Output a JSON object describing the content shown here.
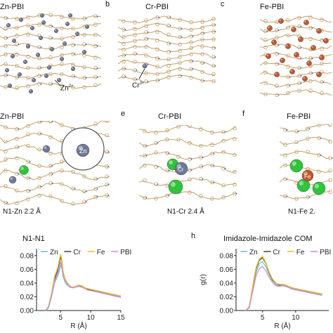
{
  "panels": {
    "a": {
      "title": "Zn-PBI",
      "annotation": "Zn",
      "annotation_sup": "2+"
    },
    "b": {
      "letter": "b",
      "title": "Cr-PBI",
      "annotation": "Cr",
      "annotation_sup": "3+"
    },
    "c": {
      "letter": "c",
      "title": "Fe-PBI"
    },
    "d": {
      "title": "Zn-PBI",
      "atom_label": "Zn",
      "distance": "N1-Zn  2.2 Å"
    },
    "e": {
      "letter": "e",
      "title": "Cr-PBI",
      "atom_label": "Cr",
      "distance": "N1-Cr  2.4 Å"
    },
    "f": {
      "letter": "f",
      "title": "Fe-PBI",
      "atom_label": "Fe",
      "distance": "N1-Fe  2."
    },
    "g": {
      "title": "N1-N1"
    },
    "h": {
      "letter": "h",
      "title": "Imidazole-Imidazole COM"
    }
  },
  "colors": {
    "Zn": "#6fc2d0",
    "Cr": "#3b5a3e",
    "Fe": "#f0c02a",
    "PBI": "#d98ad6",
    "zn_atom": "#6e7898",
    "fe_atom": "#c2552a",
    "cl_atom": "#2fc43a",
    "polymer": "#c9a877",
    "nitrogen": "#3a56c8"
  },
  "chart_data": [
    {
      "type": "line",
      "title": "N1-N1",
      "xlabel": "R (Å)",
      "ylabel": "",
      "xlim": [
        1,
        15
      ],
      "ylim": [
        0,
        0.09
      ],
      "xticks": [
        "5",
        "10",
        "15"
      ],
      "yticks": [
        "0.00",
        "0.02",
        "0.04",
        "0.06",
        "0.08"
      ],
      "legend": "top-center",
      "x": [
        2.5,
        3.0,
        3.5,
        4.0,
        4.5,
        4.8,
        5.0,
        5.2,
        5.4,
        5.7,
        6.0,
        6.5,
        7.0,
        7.5,
        8.0,
        8.5,
        9.0,
        9.5,
        10.0,
        11.0,
        12.0,
        13.0,
        14.0,
        15.0
      ],
      "series": [
        {
          "name": "Zn",
          "values": [
            0.0,
            0.004,
            0.02,
            0.04,
            0.05,
            0.058,
            0.066,
            0.062,
            0.05,
            0.042,
            0.038,
            0.034,
            0.033,
            0.034,
            0.036,
            0.035,
            0.032,
            0.031,
            0.03,
            0.028,
            0.026,
            0.024,
            0.022,
            0.02
          ]
        },
        {
          "name": "Cr",
          "values": [
            0.0,
            0.006,
            0.024,
            0.046,
            0.058,
            0.07,
            0.079,
            0.072,
            0.056,
            0.046,
            0.041,
            0.035,
            0.034,
            0.035,
            0.037,
            0.036,
            0.033,
            0.031,
            0.03,
            0.029,
            0.027,
            0.025,
            0.023,
            0.021
          ]
        },
        {
          "name": "Fe",
          "values": [
            0.0,
            0.006,
            0.026,
            0.05,
            0.062,
            0.074,
            0.082,
            0.075,
            0.058,
            0.047,
            0.042,
            0.036,
            0.034,
            0.035,
            0.037,
            0.036,
            0.033,
            0.032,
            0.031,
            0.029,
            0.027,
            0.025,
            0.023,
            0.021
          ]
        },
        {
          "name": "PBI",
          "values": [
            0.0,
            0.005,
            0.022,
            0.043,
            0.053,
            0.062,
            0.07,
            0.065,
            0.053,
            0.044,
            0.04,
            0.035,
            0.033,
            0.034,
            0.035,
            0.034,
            0.032,
            0.03,
            0.029,
            0.027,
            0.025,
            0.023,
            0.021,
            0.019
          ]
        }
      ]
    },
    {
      "type": "line",
      "title": "Imidazole-Imidazole COM",
      "xlabel": "R (Å)",
      "ylabel": "g(r)",
      "xlim": [
        1,
        15
      ],
      "ylim": [
        0,
        0.09
      ],
      "xticks": [
        "5",
        "10"
      ],
      "yticks": [
        "0.00",
        "0.02",
        "0.04",
        "0.06",
        "0.08"
      ],
      "legend": "top-center",
      "x": [
        2.5,
        3.0,
        3.5,
        4.0,
        4.5,
        5.0,
        5.5,
        6.0,
        6.5,
        7.0,
        7.5,
        8.0,
        8.5,
        9.0,
        9.5,
        10.0,
        11.0,
        12.0,
        13.0,
        14.0
      ],
      "series": [
        {
          "name": "Zn",
          "values": [
            0.0,
            0.005,
            0.03,
            0.055,
            0.068,
            0.071,
            0.064,
            0.052,
            0.043,
            0.038,
            0.036,
            0.037,
            0.036,
            0.034,
            0.032,
            0.031,
            0.029,
            0.027,
            0.025,
            0.023
          ]
        },
        {
          "name": "Cr",
          "values": [
            0.0,
            0.006,
            0.034,
            0.06,
            0.073,
            0.077,
            0.069,
            0.055,
            0.045,
            0.04,
            0.037,
            0.038,
            0.037,
            0.035,
            0.033,
            0.032,
            0.03,
            0.028,
            0.026,
            0.024
          ]
        },
        {
          "name": "Fe",
          "values": [
            0.0,
            0.006,
            0.035,
            0.062,
            0.075,
            0.079,
            0.07,
            0.056,
            0.046,
            0.04,
            0.038,
            0.038,
            0.037,
            0.035,
            0.033,
            0.032,
            0.03,
            0.028,
            0.026,
            0.024
          ]
        },
        {
          "name": "PBI",
          "values": [
            0.0,
            0.004,
            0.027,
            0.05,
            0.061,
            0.064,
            0.058,
            0.048,
            0.041,
            0.036,
            0.035,
            0.036,
            0.035,
            0.033,
            0.031,
            0.03,
            0.028,
            0.026,
            0.024,
            0.022
          ]
        }
      ]
    }
  ]
}
